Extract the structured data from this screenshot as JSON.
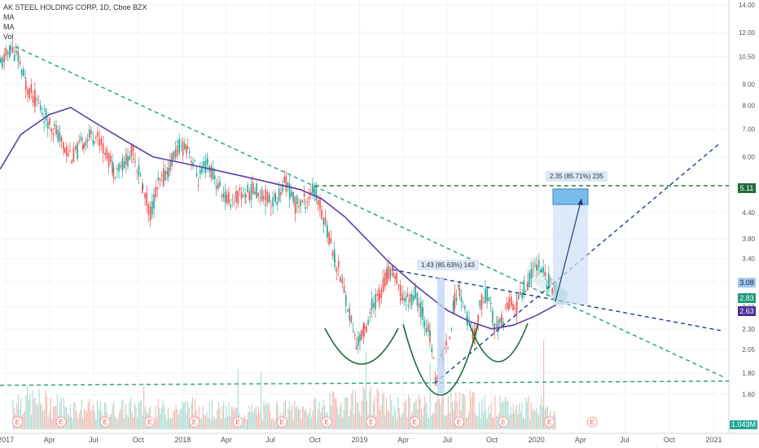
{
  "legend": {
    "title": "AK STEEL HOLDING CORP, 1D, Cboe BZX",
    "ma1": "MA",
    "ma2": "MA",
    "vol": "Vol"
  },
  "annotations": {
    "measure1": "1.43 (85.63%) 143",
    "measure2": "2.35 (85.71%) 235"
  },
  "price_tags": {
    "level": "5.11",
    "current_blue": "3.08",
    "current_green": "2.83",
    "ma_value": "2.63"
  },
  "volume_tag": "1.043M",
  "chart_data": {
    "type": "candlestick",
    "title": "AK STEEL HOLDING CORP, 1D, Cboe BZX",
    "y_scale": "log",
    "ylim": [
      1.5,
      14.0
    ],
    "xlim": [
      "2016-12-20",
      "2021-02-01"
    ],
    "y_ticks": [
      "14.00",
      "12.00",
      "10.50",
      "9.00",
      "8.00",
      "7.00",
      "6.00",
      "5.00",
      "4.40",
      "3.80",
      "3.40",
      "3.00",
      "2.60",
      "2.30",
      "2.05",
      "1.80",
      "1.60"
    ],
    "x_ticks": [
      {
        "label": "2017",
        "date": "2017-01-01"
      },
      {
        "label": "Apr",
        "date": "2017-04-01"
      },
      {
        "label": "Jul",
        "date": "2017-07-01"
      },
      {
        "label": "Oct",
        "date": "2017-10-01"
      },
      {
        "label": "2018",
        "date": "2018-01-01"
      },
      {
        "label": "Apr",
        "date": "2018-04-01"
      },
      {
        "label": "Jul",
        "date": "2018-07-01"
      },
      {
        "label": "Oct",
        "date": "2018-10-01"
      },
      {
        "label": "2019",
        "date": "2019-01-01"
      },
      {
        "label": "Apr",
        "date": "2019-04-01"
      },
      {
        "label": "Jul",
        "date": "2019-07-01"
      },
      {
        "label": "Oct",
        "date": "2019-10-01"
      },
      {
        "label": "2020",
        "date": "2020-01-01"
      },
      {
        "label": "Apr",
        "date": "2020-04-01"
      },
      {
        "label": "Jul",
        "date": "2020-07-01"
      },
      {
        "label": "Oct",
        "date": "2020-10-01"
      },
      {
        "label": "2021",
        "date": "2021-01-01"
      }
    ],
    "price_path": [
      [
        "2016-12-20",
        10.0
      ],
      [
        "2017-01-10",
        11.0
      ],
      [
        "2017-01-25",
        10.4
      ],
      [
        "2017-02-10",
        9.0
      ],
      [
        "2017-03-01",
        8.3
      ],
      [
        "2017-03-20",
        7.6
      ],
      [
        "2017-04-10",
        7.0
      ],
      [
        "2017-05-01",
        6.3
      ],
      [
        "2017-05-20",
        6.0
      ],
      [
        "2017-06-10",
        6.6
      ],
      [
        "2017-07-01",
        6.8
      ],
      [
        "2017-07-20",
        6.4
      ],
      [
        "2017-08-10",
        5.6
      ],
      [
        "2017-09-01",
        5.8
      ],
      [
        "2017-09-20",
        6.2
      ],
      [
        "2017-10-10",
        5.0
      ],
      [
        "2017-10-25",
        4.4
      ],
      [
        "2017-11-10",
        5.1
      ],
      [
        "2017-12-01",
        5.6
      ],
      [
        "2017-12-20",
        6.3
      ],
      [
        "2018-01-10",
        6.4
      ],
      [
        "2018-02-01",
        5.3
      ],
      [
        "2018-02-20",
        5.8
      ],
      [
        "2018-03-10",
        5.2
      ],
      [
        "2018-04-01",
        4.7
      ],
      [
        "2018-04-20",
        4.8
      ],
      [
        "2018-05-10",
        4.9
      ],
      [
        "2018-06-01",
        5.0
      ],
      [
        "2018-06-20",
        4.8
      ],
      [
        "2018-07-10",
        4.7
      ],
      [
        "2018-08-01",
        5.2
      ],
      [
        "2018-08-20",
        4.6
      ],
      [
        "2018-09-10",
        4.7
      ],
      [
        "2018-09-25",
        5.0
      ],
      [
        "2018-10-10",
        4.6
      ],
      [
        "2018-10-25",
        4.0
      ],
      [
        "2018-11-10",
        3.4
      ],
      [
        "2018-11-25",
        3.0
      ],
      [
        "2018-12-10",
        2.5
      ],
      [
        "2018-12-24",
        2.1
      ],
      [
        "2019-01-10",
        2.3
      ],
      [
        "2019-01-25",
        2.6
      ],
      [
        "2019-02-10",
        2.8
      ],
      [
        "2019-02-25",
        3.1
      ],
      [
        "2019-03-10",
        3.2
      ],
      [
        "2019-03-25",
        2.8
      ],
      [
        "2019-04-10",
        2.7
      ],
      [
        "2019-04-25",
        2.8
      ],
      [
        "2019-05-10",
        2.5
      ],
      [
        "2019-05-25",
        2.2
      ],
      [
        "2019-06-05",
        1.75
      ],
      [
        "2019-06-20",
        2.0
      ],
      [
        "2019-07-01",
        2.1
      ],
      [
        "2019-07-15",
        2.7
      ],
      [
        "2019-07-25",
        2.9
      ],
      [
        "2019-08-10",
        2.4
      ],
      [
        "2019-08-25",
        2.2
      ],
      [
        "2019-09-05",
        2.6
      ],
      [
        "2019-09-20",
        2.8
      ],
      [
        "2019-10-05",
        2.3
      ],
      [
        "2019-10-20",
        2.4
      ],
      [
        "2019-11-05",
        2.7
      ],
      [
        "2019-11-20",
        2.6
      ],
      [
        "2019-12-05",
        2.9
      ],
      [
        "2019-12-20",
        3.1
      ],
      [
        "2020-01-01",
        3.35
      ],
      [
        "2020-01-10",
        3.2
      ],
      [
        "2020-01-25",
        3.0
      ],
      [
        "2020-02-10",
        2.85
      ]
    ],
    "series": [
      {
        "name": "MA",
        "color": "#5e3ea8",
        "points": [
          [
            "2016-12-20",
            5.6
          ],
          [
            "2017-02-01",
            6.8
          ],
          [
            "2017-04-01",
            7.6
          ],
          [
            "2017-05-15",
            7.9
          ],
          [
            "2017-07-01",
            7.3
          ],
          [
            "2017-09-01",
            6.6
          ],
          [
            "2017-11-01",
            6.0
          ],
          [
            "2018-01-01",
            5.8
          ],
          [
            "2018-03-01",
            5.6
          ],
          [
            "2018-05-01",
            5.4
          ],
          [
            "2018-07-01",
            5.2
          ],
          [
            "2018-09-01",
            5.0
          ],
          [
            "2018-10-15",
            4.75
          ],
          [
            "2018-12-01",
            4.3
          ],
          [
            "2019-01-15",
            3.8
          ],
          [
            "2019-03-01",
            3.35
          ],
          [
            "2019-05-01",
            2.9
          ],
          [
            "2019-07-01",
            2.55
          ],
          [
            "2019-08-15",
            2.4
          ],
          [
            "2019-10-01",
            2.3
          ],
          [
            "2019-11-15",
            2.35
          ],
          [
            "2020-01-01",
            2.48
          ],
          [
            "2020-02-10",
            2.63
          ]
        ]
      }
    ],
    "volume_ylim": [
      0,
      8
    ],
    "volume_unit": "M",
    "volume": [
      [
        "2017-01-15",
        2.6
      ],
      [
        "2017-03-15",
        2.3
      ],
      [
        "2017-05-15",
        1.9
      ],
      [
        "2017-07-15",
        1.6
      ],
      [
        "2017-09-15",
        1.8
      ],
      [
        "2017-11-15",
        1.7
      ],
      [
        "2018-01-15",
        1.9
      ],
      [
        "2018-03-15",
        1.6
      ],
      [
        "2018-05-15",
        1.5
      ],
      [
        "2018-07-15",
        1.7
      ],
      [
        "2018-09-15",
        1.6
      ],
      [
        "2018-11-15",
        2.3
      ],
      [
        "2019-01-15",
        2.6
      ],
      [
        "2019-03-15",
        1.9
      ],
      [
        "2019-05-15",
        2.1
      ],
      [
        "2019-07-15",
        2.5
      ],
      [
        "2019-09-15",
        2.0
      ],
      [
        "2019-11-15",
        1.8
      ],
      [
        "2020-01-15",
        2.2
      ],
      [
        "2020-02-10",
        1.0
      ]
    ],
    "earnings_dates": [
      "2017-01-25",
      "2017-04-25",
      "2017-07-25",
      "2017-10-25",
      "2018-01-25",
      "2018-04-25",
      "2018-07-25",
      "2018-10-25",
      "2019-01-25",
      "2019-04-25",
      "2019-07-25",
      "2019-10-25",
      "2020-01-28",
      "2020-04-25"
    ],
    "earnings_label": "E",
    "trendlines": [
      {
        "name": "long-term-down",
        "style": "dashed",
        "color": "#1ea085",
        "from": [
          "2017-01-20",
          11.1
        ],
        "to": [
          "2021-01-25",
          1.75
        ]
      },
      {
        "name": "neckline",
        "style": "dashed",
        "color": "#1a3f8f",
        "from": [
          "2019-03-10",
          3.2
        ],
        "to": [
          "2021-01-15",
          2.28
        ]
      },
      {
        "name": "support-up",
        "style": "dashed",
        "color": "#1a3f8f",
        "from": [
          "2019-06-05",
          1.7
        ],
        "to": [
          "2021-01-15",
          6.5
        ]
      },
      {
        "name": "horizontal-bottom",
        "style": "dashed",
        "color": "#1ea085",
        "from": [
          "2016-12-20",
          1.68
        ],
        "to": [
          "2021-02-01",
          1.72
        ]
      },
      {
        "name": "target-level",
        "style": "dashed",
        "color": "#2e7d32",
        "from": [
          "2018-10-01",
          5.11
        ],
        "to": [
          "2021-02-01",
          5.11
        ]
      }
    ]
  }
}
